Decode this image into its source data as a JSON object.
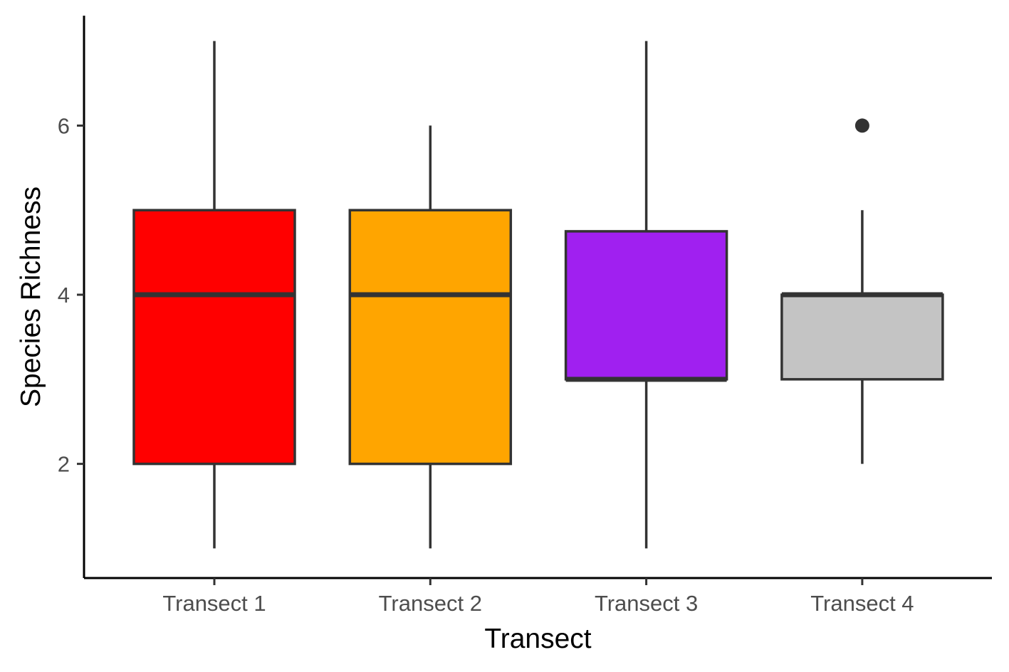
{
  "chart_data": {
    "type": "boxplot",
    "title": "",
    "xlabel": "Transect",
    "ylabel": "Species Richness",
    "ylim": [
      0.65,
      7.3
    ],
    "yticks": [
      2,
      4,
      6
    ],
    "grid": false,
    "legend": "none",
    "categories": [
      "Transect 1",
      "Transect 2",
      "Transect 3",
      "Transect 4"
    ],
    "boxes": [
      {
        "category": "Transect 1",
        "whisker_low": 1,
        "q1": 2,
        "median": 4,
        "q3": 5,
        "whisker_high": 7,
        "outliers": [],
        "fill": "#ff0000"
      },
      {
        "category": "Transect 2",
        "whisker_low": 1,
        "q1": 2,
        "median": 4,
        "q3": 5,
        "whisker_high": 6,
        "outliers": [],
        "fill": "#ffa500"
      },
      {
        "category": "Transect 3",
        "whisker_low": 1,
        "q1": 3,
        "median": 3,
        "q3": 4.75,
        "whisker_high": 7,
        "outliers": [],
        "fill": "#a020f0"
      },
      {
        "category": "Transect 4",
        "whisker_low": 2,
        "q1": 3,
        "median": 4,
        "q3": 4,
        "whisker_high": 5,
        "outliers": [
          6
        ],
        "fill": "#c4c4c4"
      }
    ],
    "colors": {
      "outline": "#333333",
      "axis": "#000000",
      "tick_label": "#4d4d4d"
    }
  }
}
